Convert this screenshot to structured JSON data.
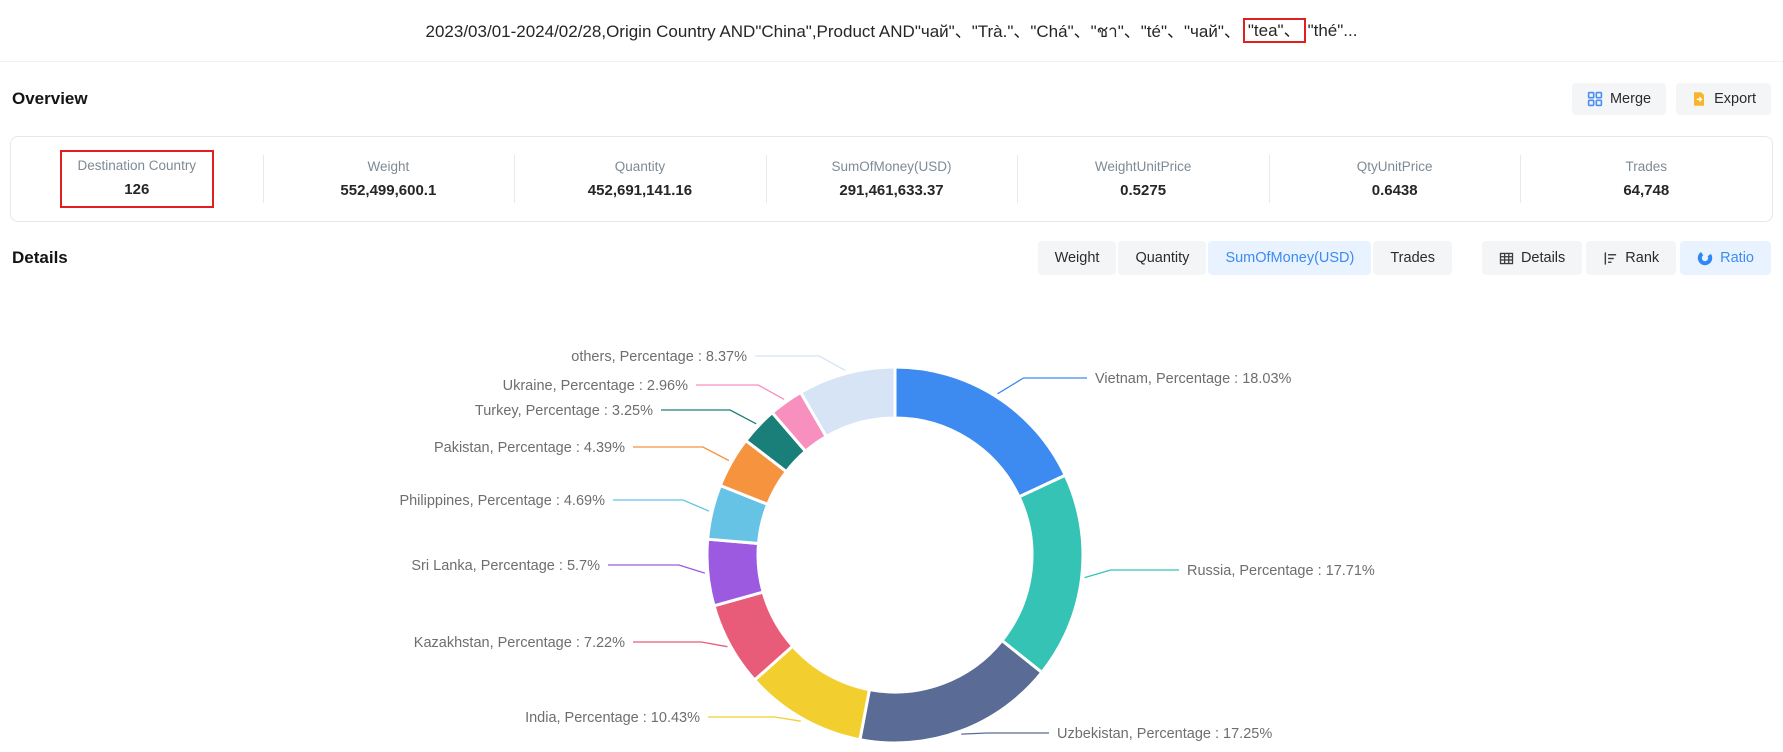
{
  "header": {
    "title_prefix": "2023/03/01-2024/02/28,Origin Country AND\"China\",Product AND\"чай\"、\"Trà.\"、\"Chá\"、\"ชา\"、\"té\"、\"чай\"、",
    "title_highlight": "\"tea\"、",
    "title_suffix": "\"thé\"...",
    "highlight_color": "#e01f1f"
  },
  "overview": {
    "heading": "Overview",
    "merge_label": "Merge",
    "export_label": "Export",
    "stats": [
      {
        "label": "Destination Country",
        "value": "126",
        "highlighted": true
      },
      {
        "label": "Weight",
        "value": "552,499,600.1"
      },
      {
        "label": "Quantity",
        "value": "452,691,141.16"
      },
      {
        "label": "SumOfMoney(USD)",
        "value": "291,461,633.37"
      },
      {
        "label": "WeightUnitPrice",
        "value": "0.5275"
      },
      {
        "label": "QtyUnitPrice",
        "value": "0.6438"
      },
      {
        "label": "Trades",
        "value": "64,748"
      }
    ]
  },
  "details": {
    "heading": "Details",
    "metric_tabs": [
      {
        "label": "Weight",
        "active": false
      },
      {
        "label": "Quantity",
        "active": false
      },
      {
        "label": "SumOfMoney(USD)",
        "active": true
      },
      {
        "label": "Trades",
        "active": false
      }
    ],
    "view_tabs": [
      {
        "label": "Details",
        "icon": "table-icon",
        "active": false
      },
      {
        "label": "Rank",
        "icon": "rank-icon",
        "active": false
      },
      {
        "label": "Ratio",
        "icon": "donut-icon",
        "active": true
      }
    ],
    "active_color": "#3e8bf0",
    "active_bg": "#e8f3ff"
  },
  "chart_data": {
    "type": "pie",
    "subtype": "donut",
    "title": "",
    "value_name": "Percentage",
    "unit": "%",
    "categories": [
      "Vietnam",
      "Russia",
      "Uzbekistan",
      "India",
      "Kazakhstan",
      "Sri Lanka",
      "Philippines",
      "Pakistan",
      "Turkey",
      "Ukraine",
      "others"
    ],
    "values": [
      18.03,
      17.71,
      17.25,
      10.43,
      7.22,
      5.7,
      4.69,
      4.39,
      3.25,
      2.96,
      8.37
    ],
    "colors": [
      "#3d8bf0",
      "#34c3b5",
      "#5a6b95",
      "#f3ce2f",
      "#e85c79",
      "#9b5ae0",
      "#67c3e6",
      "#f6933e",
      "#1b7f79",
      "#f78fbf",
      "#d6e4f6"
    ],
    "label_template": "{name},  Percentage : {value}%",
    "start_angle_deg": 0,
    "direction": "clockwise",
    "legend_position": "none",
    "grid": false
  }
}
